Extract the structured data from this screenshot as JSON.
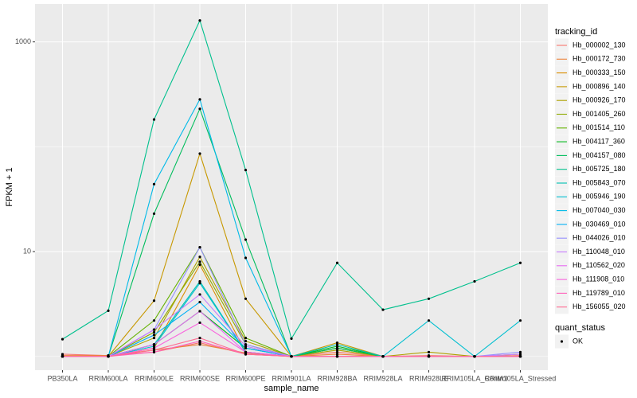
{
  "chart_data": {
    "type": "line",
    "x_label": "sample_name",
    "y_label": "FPKM + 1",
    "legend_title": "tracking_id",
    "point_legend_title": "quant_status",
    "point_legend_label": "OK",
    "point_color": "#000000",
    "log_y": true,
    "grid": true,
    "legend_position": "right",
    "ylim": [
      0.74,
      2300
    ],
    "yticks": [
      10,
      1000
    ],
    "categories": [
      "PB350LA",
      "RRIM600LA",
      "RRIM600LE",
      "RRIM600SE",
      "RRIM600PE",
      "RRIM901LA",
      "RRIM928BA",
      "RRIM928LA",
      "RRIM928LE",
      "RRIM105LA_Control",
      "RRIM105LA_Stressed"
    ],
    "series": [
      {
        "name": "Hb_000002_130",
        "color": "#F8766D",
        "values": [
          1.05,
          1.02,
          1.1,
          1.35,
          1.05,
          1.0,
          1.1,
          1.0,
          1.02,
          1.0,
          1.02
        ]
      },
      {
        "name": "Hb_000172_730",
        "color": "#EC8239",
        "values": [
          1.02,
          1.02,
          1.15,
          1.3,
          1.08,
          1.0,
          1.05,
          1.0,
          1.0,
          1.0,
          1.0
        ]
      },
      {
        "name": "Hb_000333_150",
        "color": "#DB8E00",
        "values": [
          1.0,
          1.0,
          1.2,
          7.5,
          1.1,
          1.0,
          1.0,
          1.0,
          1.0,
          1.0,
          1.0
        ]
      },
      {
        "name": "Hb_000896_140",
        "color": "#C79800",
        "values": [
          1.0,
          1.0,
          3.4,
          86,
          3.55,
          1.0,
          1.35,
          1.0,
          1.0,
          1.0,
          1.0
        ]
      },
      {
        "name": "Hb_000926_170",
        "color": "#AEA200",
        "values": [
          1.0,
          1.0,
          1.5,
          8.9,
          1.4,
          1.0,
          1.15,
          1.0,
          1.1,
          1.0,
          1.05
        ]
      },
      {
        "name": "Hb_001405_260",
        "color": "#8FAA00",
        "values": [
          1.0,
          1.0,
          1.7,
          8.0,
          1.3,
          1.0,
          1.2,
          1.0,
          1.0,
          1.0,
          1.0
        ]
      },
      {
        "name": "Hb_001514_110",
        "color": "#64B200",
        "values": [
          1.0,
          1.0,
          2.2,
          11,
          1.5,
          1.0,
          1.2,
          1.0,
          1.0,
          1.0,
          1.0
        ]
      },
      {
        "name": "Hb_004117_360",
        "color": "#00B81B",
        "values": [
          1.0,
          1.0,
          1.3,
          2.7,
          1.2,
          1.0,
          1.25,
          1.0,
          1.0,
          1.0,
          1.0
        ]
      },
      {
        "name": "Hb_004157_080",
        "color": "#00BD5C",
        "values": [
          1.0,
          1.0,
          23,
          230,
          13,
          1.0,
          1.2,
          1.0,
          1.0,
          1.0,
          1.0
        ]
      },
      {
        "name": "Hb_005725_180",
        "color": "#00C08D",
        "values": [
          1.46,
          2.73,
          182,
          1600,
          60,
          1.48,
          7.8,
          2.79,
          3.55,
          5.2,
          7.8
        ]
      },
      {
        "name": "Hb_005843_070",
        "color": "#00C1B2",
        "values": [
          1.0,
          1.0,
          1.3,
          5.2,
          1.1,
          1.0,
          1.3,
          1.0,
          1.0,
          1.0,
          1.0
        ]
      },
      {
        "name": "Hb_005946_190",
        "color": "#00BFD0",
        "values": [
          1.0,
          1.0,
          1.25,
          5.0,
          1.1,
          1.0,
          1.0,
          1.0,
          2.2,
          1.0,
          2.2
        ]
      },
      {
        "name": "Hb_007040_030",
        "color": "#00BAE8",
        "values": [
          1.0,
          1.0,
          44,
          283,
          8.7,
          1.0,
          1.0,
          1.0,
          1.0,
          1.0,
          1.0
        ]
      },
      {
        "name": "Hb_030469_010",
        "color": "#00B0F6",
        "values": [
          1.0,
          1.0,
          1.6,
          3.3,
          1.2,
          1.0,
          1.0,
          1.0,
          1.0,
          1.0,
          1.0
        ]
      },
      {
        "name": "Hb_044026_010",
        "color": "#9590FF",
        "values": [
          1.0,
          1.0,
          1.8,
          11,
          1.3,
          1.0,
          1.0,
          1.0,
          1.0,
          1.0,
          1.1
        ]
      },
      {
        "name": "Hb_110048_010",
        "color": "#C77CFF",
        "values": [
          1.0,
          1.0,
          1.8,
          3.9,
          1.25,
          1.0,
          1.0,
          1.0,
          1.0,
          1.0,
          1.05
        ]
      },
      {
        "name": "Hb_110562_020",
        "color": "#E76BF3",
        "values": [
          1.0,
          1.0,
          1.3,
          2.7,
          1.1,
          1.0,
          1.0,
          1.0,
          1.0,
          1.0,
          1.0
        ]
      },
      {
        "name": "Hb_111908_010",
        "color": "#F962DD",
        "values": [
          1.0,
          1.0,
          1.2,
          2.1,
          1.1,
          1.0,
          1.0,
          1.0,
          1.0,
          1.0,
          1.0
        ]
      },
      {
        "name": "Hb_119789_010",
        "color": "#FF62BC",
        "values": [
          1.0,
          1.0,
          1.1,
          1.4,
          1.05,
          1.0,
          1.0,
          1.0,
          1.0,
          1.0,
          1.0
        ]
      },
      {
        "name": "Hb_156055_020",
        "color": "#FF6C91",
        "values": [
          1.0,
          1.0,
          1.15,
          1.5,
          1.05,
          1.0,
          1.0,
          1.0,
          1.0,
          1.0,
          1.0
        ]
      }
    ]
  }
}
